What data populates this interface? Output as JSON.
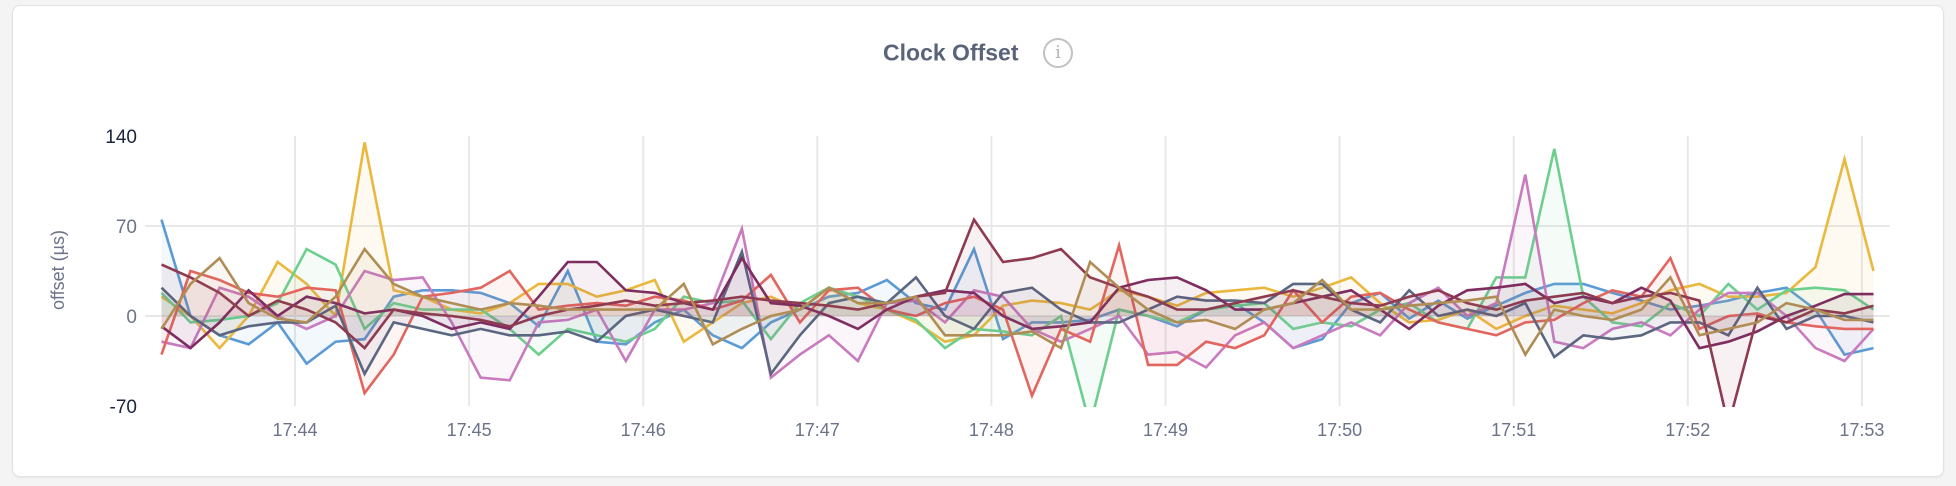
{
  "panel": {
    "title": "Clock Offset",
    "info_icon": "info-circle-icon"
  },
  "chart_data": {
    "type": "line",
    "title": "Clock Offset",
    "ylabel": "offset (µs)",
    "xlabel": "",
    "ylim": [
      -70,
      140
    ],
    "yticks": [
      {
        "value": 140,
        "label": "140",
        "emphasis": true
      },
      {
        "value": 70,
        "label": "70",
        "emphasis": false
      },
      {
        "value": 0,
        "label": "0",
        "emphasis": false
      },
      {
        "value": -70,
        "label": "-70",
        "emphasis": true
      }
    ],
    "xticks": [
      "17:44",
      "17:45",
      "17:46",
      "17:47",
      "17:48",
      "17:49",
      "17:50",
      "17:51",
      "17:52",
      "17:53"
    ],
    "grid": true,
    "area_fill_to_zero": true,
    "x": [
      "17:43:14",
      "17:43:24",
      "17:43:34",
      "17:43:44",
      "17:43:54",
      "17:44:04",
      "17:44:14",
      "17:44:24",
      "17:44:34",
      "17:44:44",
      "17:44:54",
      "17:45:04",
      "17:45:14",
      "17:45:24",
      "17:45:34",
      "17:45:44",
      "17:45:54",
      "17:46:04",
      "17:46:14",
      "17:46:24",
      "17:46:34",
      "17:46:44",
      "17:46:54",
      "17:47:04",
      "17:47:14",
      "17:47:24",
      "17:47:34",
      "17:47:44",
      "17:47:54",
      "17:48:04",
      "17:48:14",
      "17:48:24",
      "17:48:34",
      "17:48:44",
      "17:48:54",
      "17:49:04",
      "17:49:14",
      "17:49:24",
      "17:49:34",
      "17:49:44",
      "17:49:54",
      "17:50:04",
      "17:50:14",
      "17:50:24",
      "17:50:34",
      "17:50:44",
      "17:50:54",
      "17:51:04",
      "17:51:14",
      "17:51:24",
      "17:51:34",
      "17:51:44",
      "17:51:54",
      "17:52:04",
      "17:52:14",
      "17:52:24",
      "17:52:34",
      "17:52:44",
      "17:52:54",
      "17:53:04"
    ],
    "series": [
      {
        "color": "#5b9bd5",
        "values": [
          75,
          0,
          -15,
          -22,
          -5,
          -37,
          -20,
          -18,
          15,
          20,
          20,
          18,
          10,
          -8,
          35,
          -20,
          -22,
          -5,
          5,
          -15,
          -25,
          -5,
          5,
          15,
          18,
          28,
          10,
          5,
          52,
          -18,
          -5,
          -5,
          -3,
          5,
          0,
          -8,
          5,
          10,
          -5,
          -25,
          -18,
          10,
          18,
          -2,
          12,
          -2,
          8,
          18,
          25,
          25,
          18,
          12,
          5,
          8,
          12,
          18,
          22,
          5,
          -30,
          -25
        ]
      },
      {
        "color": "#ebb83e",
        "values": [
          15,
          0,
          -25,
          0,
          42,
          25,
          0,
          135,
          20,
          15,
          5,
          2,
          10,
          25,
          25,
          15,
          20,
          28,
          -20,
          -5,
          10,
          15,
          5,
          22,
          10,
          5,
          -5,
          -20,
          -15,
          8,
          12,
          10,
          5,
          20,
          15,
          8,
          18,
          20,
          22,
          15,
          22,
          30,
          10,
          -5,
          -3,
          5,
          -10,
          0,
          8,
          5,
          2,
          10,
          20,
          25,
          15,
          15,
          18,
          38,
          122,
          35
        ]
      },
      {
        "color": "#6ccf8e",
        "values": [
          18,
          -5,
          -3,
          0,
          10,
          52,
          40,
          -10,
          10,
          5,
          5,
          5,
          -10,
          -30,
          -10,
          -15,
          -20,
          -10,
          15,
          10,
          12,
          -18,
          10,
          22,
          15,
          5,
          -3,
          -25,
          -10,
          -12,
          -15,
          0,
          -85,
          5,
          0,
          -5,
          5,
          8,
          10,
          -10,
          -5,
          -8,
          5,
          10,
          -5,
          -10,
          30,
          30,
          130,
          15,
          -5,
          -8,
          10,
          0,
          25,
          5,
          20,
          22,
          20,
          5
        ]
      },
      {
        "color": "#c97bbf",
        "values": [
          -20,
          -25,
          22,
          15,
          0,
          -10,
          0,
          35,
          28,
          30,
          -5,
          -48,
          -50,
          -5,
          -3,
          5,
          -35,
          5,
          5,
          10,
          68,
          -48,
          -30,
          -15,
          -35,
          10,
          12,
          -5,
          20,
          15,
          -10,
          -20,
          -10,
          0,
          -30,
          -28,
          -40,
          -15,
          -5,
          -25,
          -15,
          -5,
          -15,
          10,
          22,
          0,
          10,
          110,
          -20,
          -25,
          -10,
          -5,
          -15,
          5,
          18,
          18,
          0,
          -25,
          -35,
          -10
        ]
      },
      {
        "color": "#e2665f",
        "values": [
          -30,
          35,
          28,
          18,
          15,
          22,
          20,
          -60,
          -30,
          15,
          18,
          22,
          35,
          5,
          8,
          10,
          8,
          15,
          12,
          5,
          12,
          32,
          -5,
          20,
          22,
          5,
          0,
          10,
          15,
          5,
          -62,
          -10,
          -20,
          55,
          -38,
          -38,
          -20,
          -25,
          -15,
          20,
          -5,
          15,
          18,
          5,
          -5,
          -10,
          -15,
          -5,
          -3,
          10,
          20,
          15,
          45,
          -10,
          0,
          2,
          -5,
          -8,
          -10,
          -10
        ]
      },
      {
        "color": "#5b6680",
        "values": [
          22,
          0,
          -15,
          -8,
          -5,
          -5,
          8,
          -45,
          -5,
          -10,
          -15,
          -10,
          -15,
          -15,
          -12,
          -20,
          0,
          5,
          0,
          -5,
          50,
          -45,
          -15,
          10,
          15,
          10,
          30,
          0,
          -10,
          18,
          22,
          5,
          -5,
          -5,
          5,
          15,
          12,
          12,
          10,
          25,
          25,
          5,
          -5,
          20,
          0,
          5,
          0,
          10,
          -32,
          -15,
          -18,
          -15,
          -5,
          -5,
          -15,
          22,
          -10,
          0,
          0,
          -5
        ]
      },
      {
        "color": "#7d2d60",
        "values": [
          -8,
          -25,
          -5,
          20,
          0,
          15,
          10,
          2,
          5,
          0,
          -10,
          -5,
          -10,
          15,
          42,
          42,
          20,
          18,
          10,
          5,
          45,
          10,
          8,
          0,
          -10,
          5,
          15,
          20,
          18,
          0,
          -10,
          -8,
          -5,
          22,
          28,
          30,
          20,
          5,
          5,
          10,
          15,
          20,
          5,
          -10,
          8,
          20,
          22,
          25,
          10,
          15,
          10,
          22,
          12,
          -25,
          -20,
          -12,
          0,
          8,
          17,
          17
        ]
      },
      {
        "color": "#8e3a50",
        "values": [
          40,
          30,
          18,
          0,
          12,
          5,
          -5,
          -25,
          5,
          2,
          0,
          -3,
          -8,
          0,
          5,
          8,
          12,
          8,
          10,
          12,
          15,
          12,
          10,
          8,
          5,
          10,
          15,
          18,
          75,
          42,
          45,
          52,
          30,
          22,
          15,
          5,
          5,
          10,
          15,
          20,
          15,
          10,
          8,
          15,
          20,
          10,
          5,
          12,
          15,
          18,
          10,
          15,
          18,
          12,
          -85,
          0,
          -5,
          5,
          2,
          8
        ]
      },
      {
        "color": "#b08d55",
        "values": [
          -10,
          25,
          45,
          10,
          -2,
          -5,
          15,
          52,
          25,
          15,
          10,
          5,
          10,
          8,
          5,
          5,
          5,
          5,
          25,
          -22,
          -10,
          0,
          5,
          22,
          10,
          10,
          15,
          -15,
          -15,
          -15,
          -12,
          -25,
          42,
          22,
          5,
          -5,
          -3,
          -10,
          5,
          10,
          28,
          5,
          5,
          8,
          10,
          12,
          15,
          -30,
          5,
          0,
          -3,
          5,
          30,
          -15,
          -10,
          -5,
          10,
          5,
          -3,
          -3
        ]
      }
    ]
  }
}
